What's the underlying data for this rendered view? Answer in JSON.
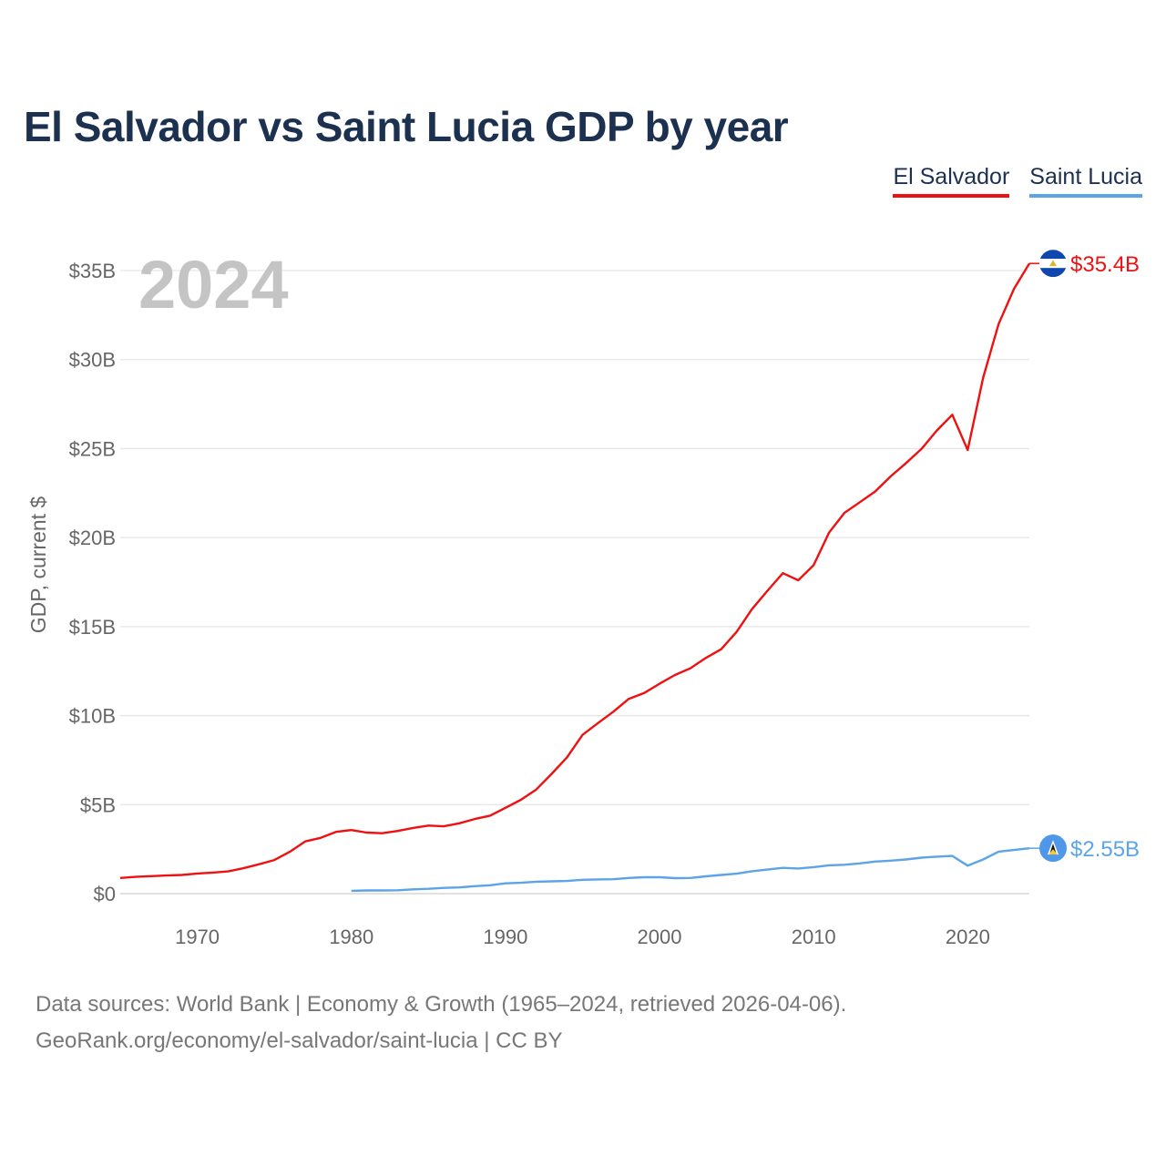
{
  "title": "El Salvador vs Saint Lucia GDP by year",
  "year_label": "2024",
  "legend": [
    {
      "name": "El Salvador",
      "color": "#ee1111"
    },
    {
      "name": "Saint Lucia",
      "color": "#5ba4e8"
    }
  ],
  "footer": {
    "line1": "Data sources: World Bank | Economy & Growth (1965–2024, retrieved 2026-04-06).",
    "line2": "GeoRank.org/economy/el-salvador/saint-lucia | CC BY"
  },
  "chart_data": {
    "type": "line",
    "title": "El Salvador vs Saint Lucia GDP by year",
    "xlabel": "",
    "ylabel": "GDP, current $",
    "xlim": [
      1965,
      2024
    ],
    "ylim": [
      0,
      35
    ],
    "y_unit": "billions USD",
    "y_ticks": [
      0,
      5,
      10,
      15,
      20,
      25,
      30,
      35
    ],
    "y_tick_labels": [
      "$0",
      "$5B",
      "$10B",
      "$15B",
      "$20B",
      "$25B",
      "$30B",
      "$35B"
    ],
    "x_ticks": [
      1970,
      1980,
      1990,
      2000,
      2010,
      2020
    ],
    "x_tick_labels": [
      "1970",
      "1980",
      "1990",
      "2000",
      "2010",
      "2020"
    ],
    "grid": true,
    "series": [
      {
        "name": "El Salvador",
        "color": "#ee1111",
        "end_label": "$35.4B",
        "x": [
          1965,
          1966,
          1967,
          1968,
          1969,
          1970,
          1971,
          1972,
          1973,
          1974,
          1975,
          1976,
          1977,
          1978,
          1979,
          1980,
          1981,
          1982,
          1983,
          1984,
          1985,
          1986,
          1987,
          1988,
          1989,
          1990,
          1991,
          1992,
          1993,
          1994,
          1995,
          1996,
          1997,
          1998,
          1999,
          2000,
          2001,
          2002,
          2003,
          2004,
          2005,
          2006,
          2007,
          2008,
          2009,
          2010,
          2011,
          2012,
          2013,
          2014,
          2015,
          2016,
          2017,
          2018,
          2019,
          2020,
          2021,
          2022,
          2023,
          2024
        ],
        "values": [
          0.88,
          0.94,
          0.98,
          1.02,
          1.05,
          1.13,
          1.18,
          1.25,
          1.43,
          1.65,
          1.89,
          2.35,
          2.93,
          3.13,
          3.47,
          3.57,
          3.43,
          3.39,
          3.52,
          3.69,
          3.82,
          3.78,
          3.95,
          4.19,
          4.38,
          4.82,
          5.27,
          5.85,
          6.73,
          7.66,
          8.92,
          9.58,
          10.22,
          10.94,
          11.27,
          11.79,
          12.28,
          12.66,
          13.24,
          13.73,
          14.7,
          15.98,
          17.01,
          18.0,
          17.6,
          18.45,
          20.28,
          21.39,
          21.99,
          22.59,
          23.44,
          24.19,
          24.98,
          26.02,
          26.9,
          24.92,
          28.99,
          31.99,
          33.97,
          35.4
        ]
      },
      {
        "name": "Saint Lucia",
        "color": "#5ba4e8",
        "end_label": "$2.55B",
        "x": [
          1980,
          1981,
          1982,
          1983,
          1984,
          1985,
          1986,
          1987,
          1988,
          1989,
          1990,
          1991,
          1992,
          1993,
          1994,
          1995,
          1996,
          1997,
          1998,
          1999,
          2000,
          2001,
          2002,
          2003,
          2004,
          2005,
          2006,
          2007,
          2008,
          2009,
          2010,
          2011,
          2012,
          2013,
          2014,
          2015,
          2016,
          2017,
          2018,
          2019,
          2020,
          2021,
          2022,
          2023,
          2024
        ],
        "values": [
          0.16,
          0.18,
          0.18,
          0.19,
          0.24,
          0.27,
          0.32,
          0.35,
          0.42,
          0.47,
          0.58,
          0.61,
          0.67,
          0.69,
          0.71,
          0.78,
          0.8,
          0.81,
          0.88,
          0.92,
          0.92,
          0.87,
          0.88,
          0.97,
          1.05,
          1.12,
          1.26,
          1.35,
          1.45,
          1.41,
          1.49,
          1.59,
          1.62,
          1.7,
          1.8,
          1.85,
          1.92,
          2.02,
          2.08,
          2.12,
          1.57,
          1.92,
          2.36,
          2.45,
          2.55
        ]
      }
    ]
  }
}
